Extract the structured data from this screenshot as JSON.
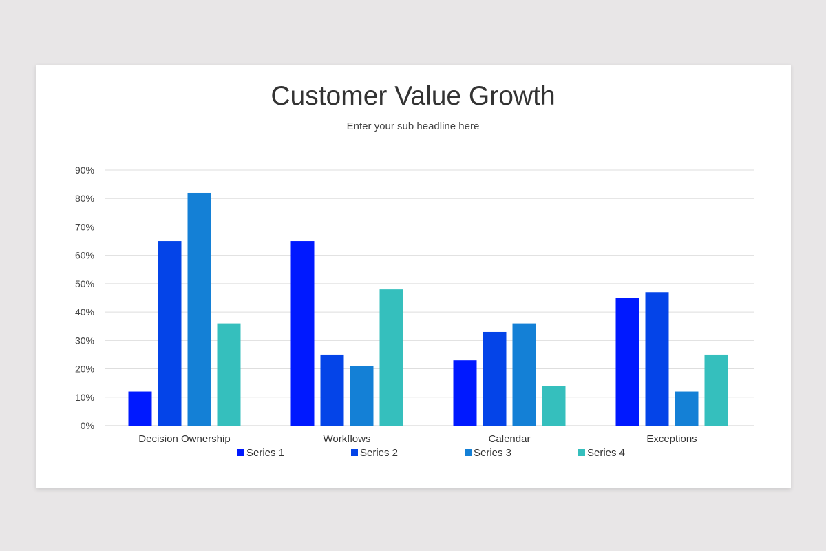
{
  "chart_data": {
    "type": "bar",
    "title": "Customer Value Growth",
    "subtitle": "Enter your sub headline here",
    "categories": [
      "Decision Ownership",
      "Workflows",
      "Calendar",
      "Exceptions"
    ],
    "series": [
      {
        "name": "Series 1",
        "color": "#0019ff",
        "values": [
          12,
          65,
          23,
          45
        ]
      },
      {
        "name": "Series 2",
        "color": "#0444e8",
        "values": [
          65,
          25,
          33,
          47
        ]
      },
      {
        "name": "Series 3",
        "color": "#1480d6",
        "values": [
          82,
          21,
          36,
          12
        ]
      },
      {
        "name": "Series 4",
        "color": "#35bfbd",
        "values": [
          36,
          48,
          14,
          25
        ]
      }
    ],
    "yticks": [
      "0%",
      "10%",
      "20%",
      "30%",
      "40%",
      "50%",
      "60%",
      "70%",
      "80%",
      "90%"
    ],
    "ylim": [
      0,
      90
    ],
    "yunit": "%",
    "grid": true,
    "legend": "bottom"
  }
}
